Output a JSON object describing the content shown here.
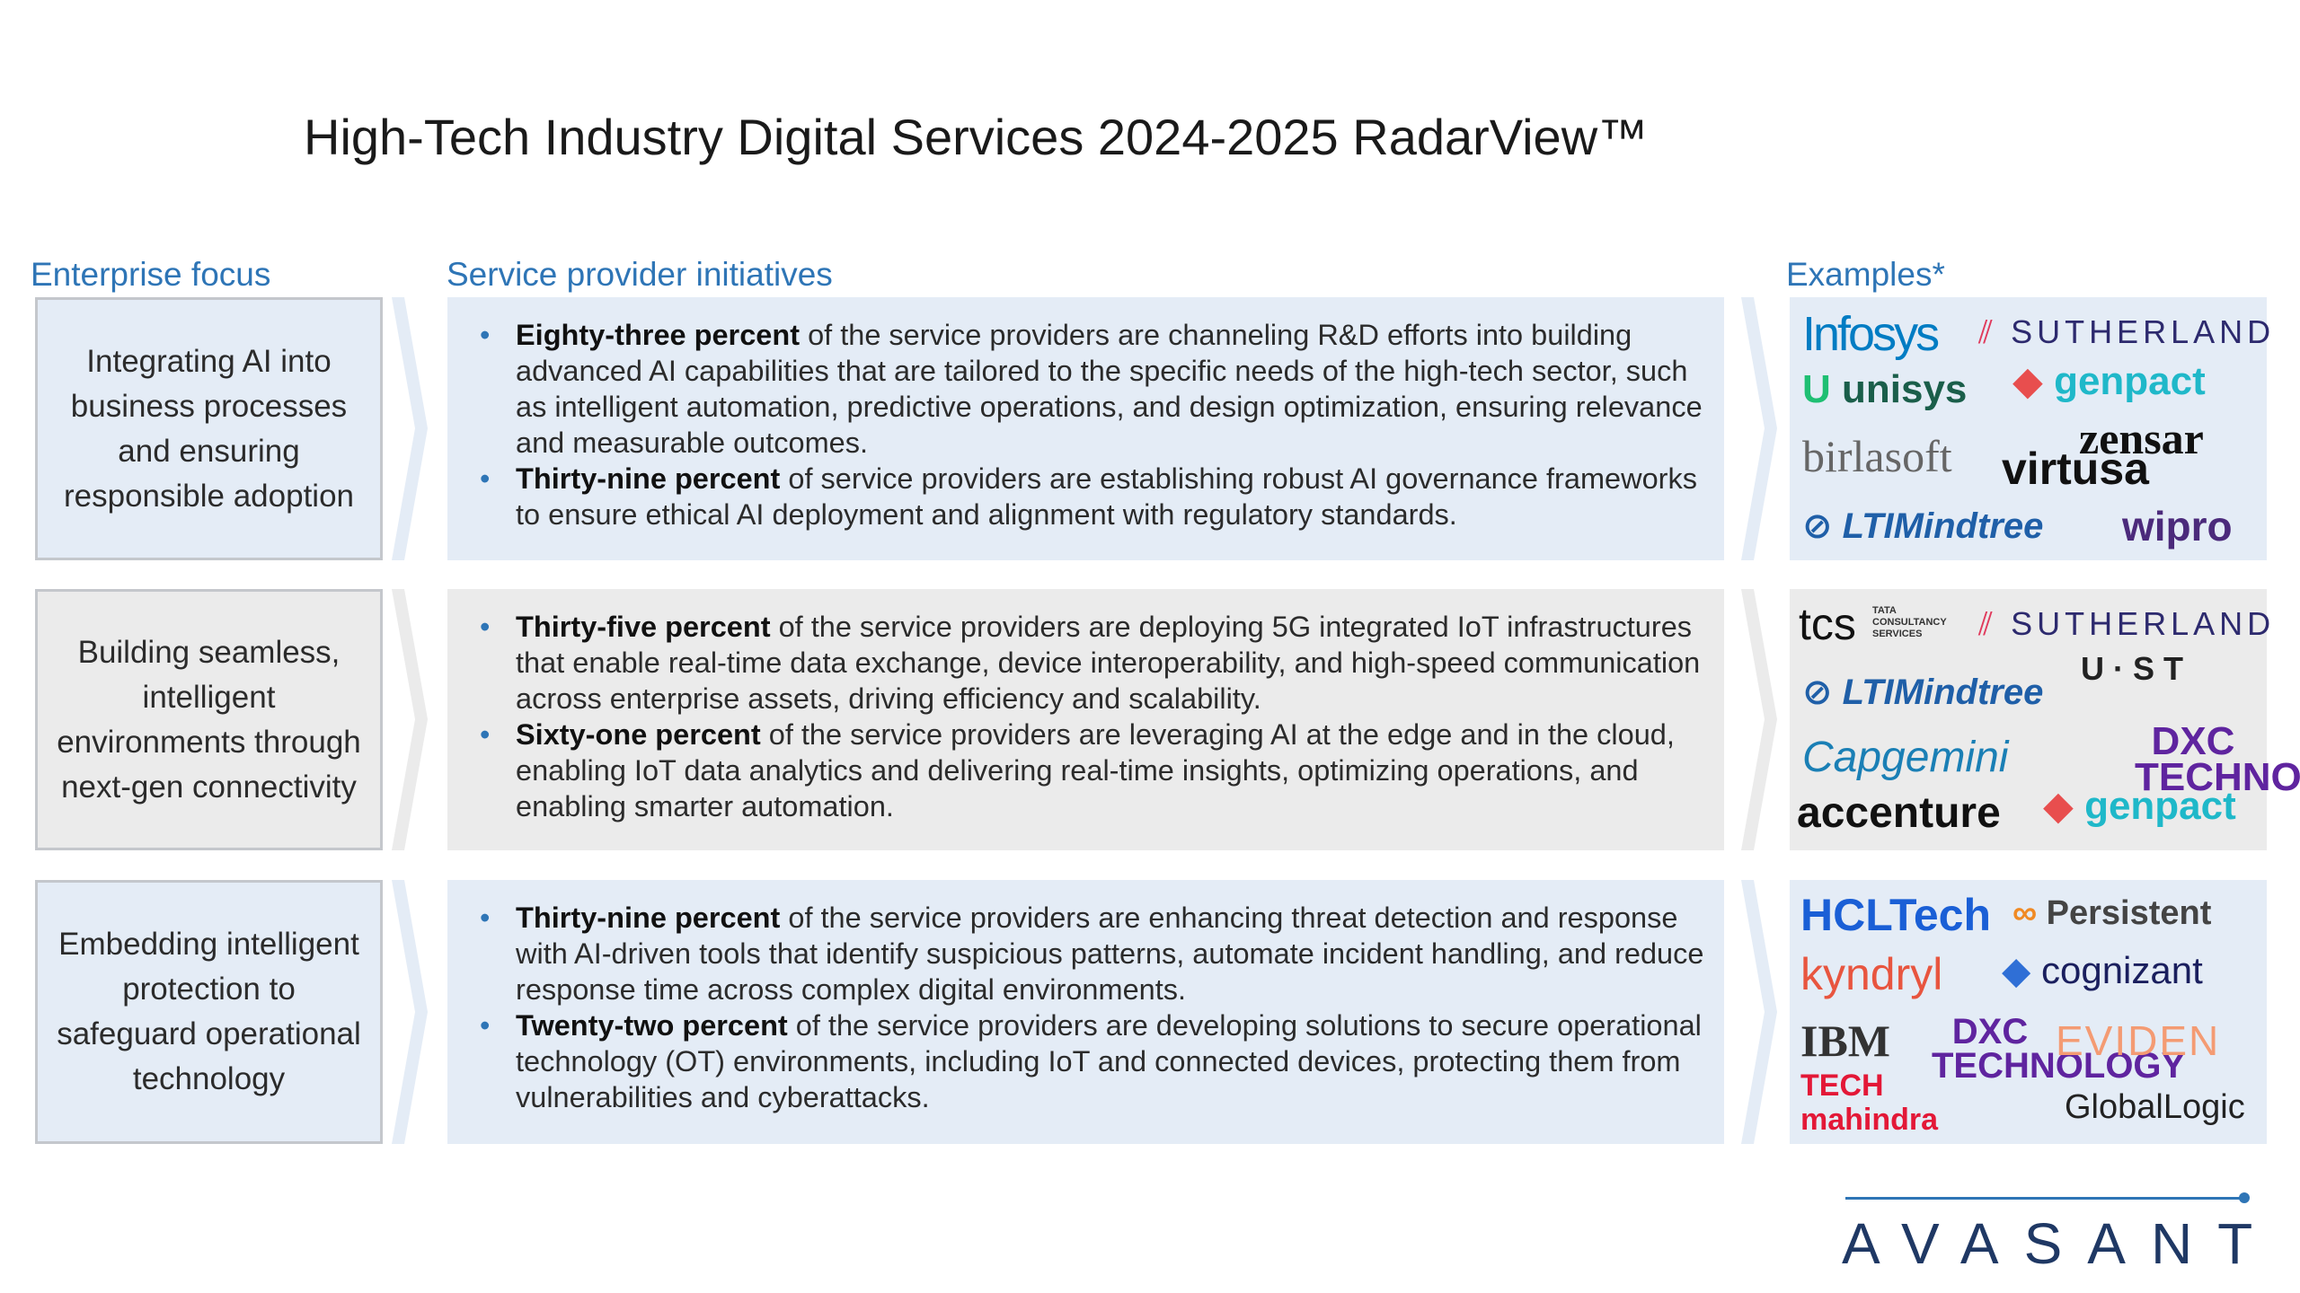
{
  "title": "High-Tech Industry Digital Services 2024-2025 RadarView™",
  "headers": {
    "focus": "Enterprise focus",
    "initiatives": "Service provider initiatives",
    "examples": "Examples*"
  },
  "rows": [
    {
      "focus": "Integrating AI into business processes and ensuring responsible adoption",
      "bullets": [
        {
          "bold": "Eighty-three percent",
          "text": " of the service providers are channeling R&D efforts into building advanced AI capabilities that are tailored to the specific needs of the high-tech sector, such as intelligent automation, predictive operations, and design optimization, ensuring relevance and measurable outcomes."
        },
        {
          "bold": "Thirty-nine percent",
          "text": " of service providers are establishing robust AI governance frameworks to ensure ethical AI deployment and alignment with regulatory standards."
        }
      ],
      "logos": [
        "Infosys",
        "SUTHERLAND",
        "unisys",
        "genpact",
        "birlasoft",
        "zensar",
        "virtusa",
        "LTIMindtree",
        "wipro"
      ]
    },
    {
      "focus": "Building seamless, intelligent environments through next-gen connectivity",
      "bullets": [
        {
          "bold": "Thirty-five percent",
          "text": " of the service providers are deploying 5G integrated IoT infrastructures that enable real-time data exchange, device interoperability, and high-speed communication across enterprise assets, driving efficiency and scalability."
        },
        {
          "bold": "Sixty-one percent",
          "text": " of the service providers are leveraging AI at the edge and in the cloud, enabling IoT data analytics and delivering real-time insights, optimizing operations, and enabling smarter automation."
        }
      ],
      "logos": [
        "tcs",
        "TATA CONSULTANCY SERVICES",
        "SUTHERLAND",
        "U·ST",
        "LTIMindtree",
        "Capgemini",
        "DXC TECHNOLOGY",
        "accenture",
        "genpact"
      ]
    },
    {
      "focus": "Embedding intelligent protection to safeguard operational technology",
      "bullets": [
        {
          "bold": "Thirty-nine percent",
          "text": " of the service providers are enhancing threat detection and response with AI-driven tools that identify suspicious patterns, automate incident handling, and reduce response time across complex digital environments."
        },
        {
          "bold": "Twenty-two percent",
          "text": " of the service providers are developing solutions to secure operational technology (OT) environments, including IoT and connected devices, protecting them from vulnerabilities and cyberattacks."
        }
      ],
      "logos": [
        "HCLTech",
        "Persistent",
        "kyndryl",
        "cognizant",
        "IBM",
        "DXC TECHNOLOGY",
        "EVIDEN",
        "TECH mahindra",
        "GlobalLogic"
      ]
    }
  ],
  "brand": "AVASANT",
  "colors": {
    "accent": "#2e75b6",
    "row_blue": "#e4ecf6",
    "row_grey": "#ebebeb"
  }
}
